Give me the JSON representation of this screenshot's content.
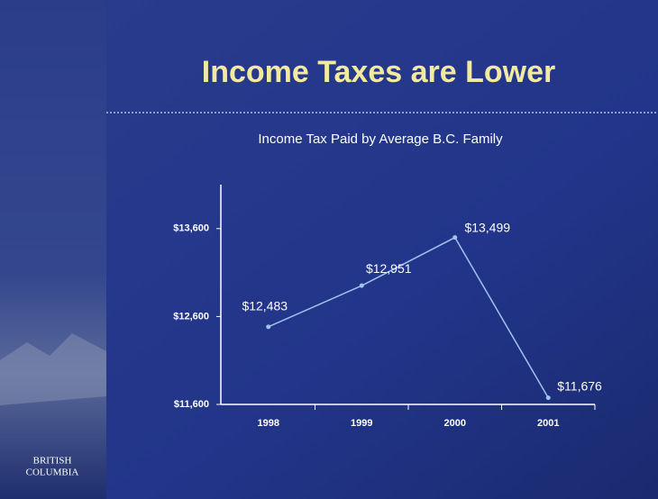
{
  "branding": {
    "line1": "BRITISH",
    "line2": "COLUMBIA"
  },
  "chart_data": {
    "type": "line",
    "title": "Income Taxes are Lower",
    "subtitle": "Income Tax Paid by Average B.C. Family",
    "categories": [
      "1998",
      "1999",
      "2000",
      "2001"
    ],
    "values": [
      12483,
      12951,
      13499,
      11676
    ],
    "value_labels": [
      "$12,483",
      "$12,951",
      "$13,499",
      "$11,676"
    ],
    "color": "#9fc4f0",
    "ylim": [
      11600,
      14100
    ],
    "yticks": [
      {
        "value": 11600,
        "label": "$11,600"
      },
      {
        "value": 12600,
        "label": "$12,600"
      },
      {
        "value": 13600,
        "label": "$13,600"
      }
    ]
  }
}
